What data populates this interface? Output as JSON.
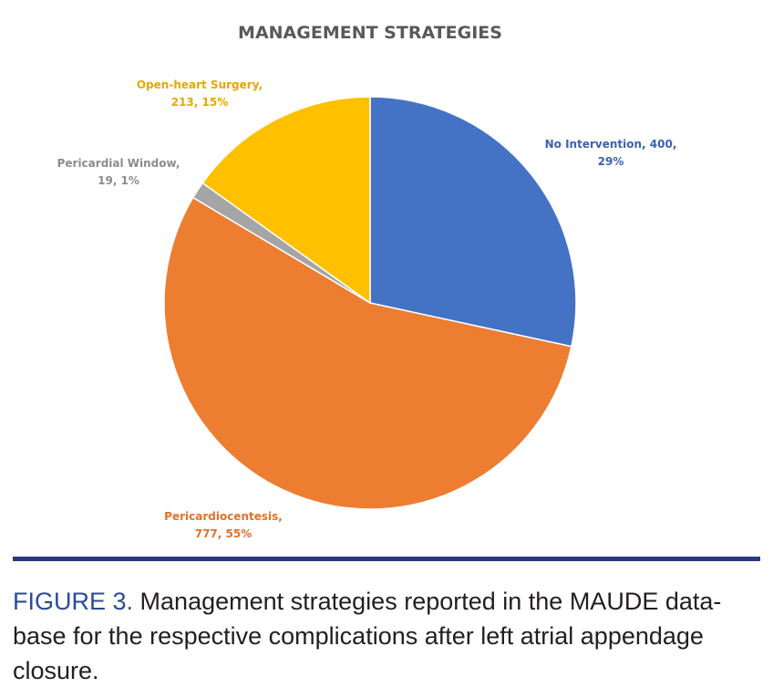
{
  "chart_data": {
    "type": "pie",
    "title": "MANAGEMENT STRATEGIES",
    "start_angle_deg": 0,
    "direction": "clockwise",
    "slices": [
      {
        "label": "No Intervention",
        "value": 400,
        "percent": "29%",
        "color": "#4472c4",
        "label_lines": [
          "No Intervention, 400,",
          "29%"
        ]
      },
      {
        "label": "Pericardiocentesis",
        "value": 777,
        "percent": "55%",
        "color": "#ed7d31",
        "label_lines": [
          "Pericardiocentesis,",
          "777, 55%"
        ]
      },
      {
        "label": "Pericardial Window",
        "value": 19,
        "percent": "1%",
        "color": "#a5a5a5",
        "label_lines": [
          "Pericardial Window,",
          "19, 1%"
        ]
      },
      {
        "label": "Open-heart Surgery",
        "value": 213,
        "percent": "15%",
        "color": "#ffc000",
        "label_lines": [
          "Open-heart Surgery,",
          "213, 15%"
        ]
      }
    ]
  },
  "figure": {
    "label": "FIGURE 3.",
    "caption": "Management strategies reported in the MAUDE data-base for the respective complications after left atrial appendage closure."
  },
  "colors": {
    "divider": "#283a78",
    "caption_label": "#2d4a9a",
    "title": "#595959"
  }
}
